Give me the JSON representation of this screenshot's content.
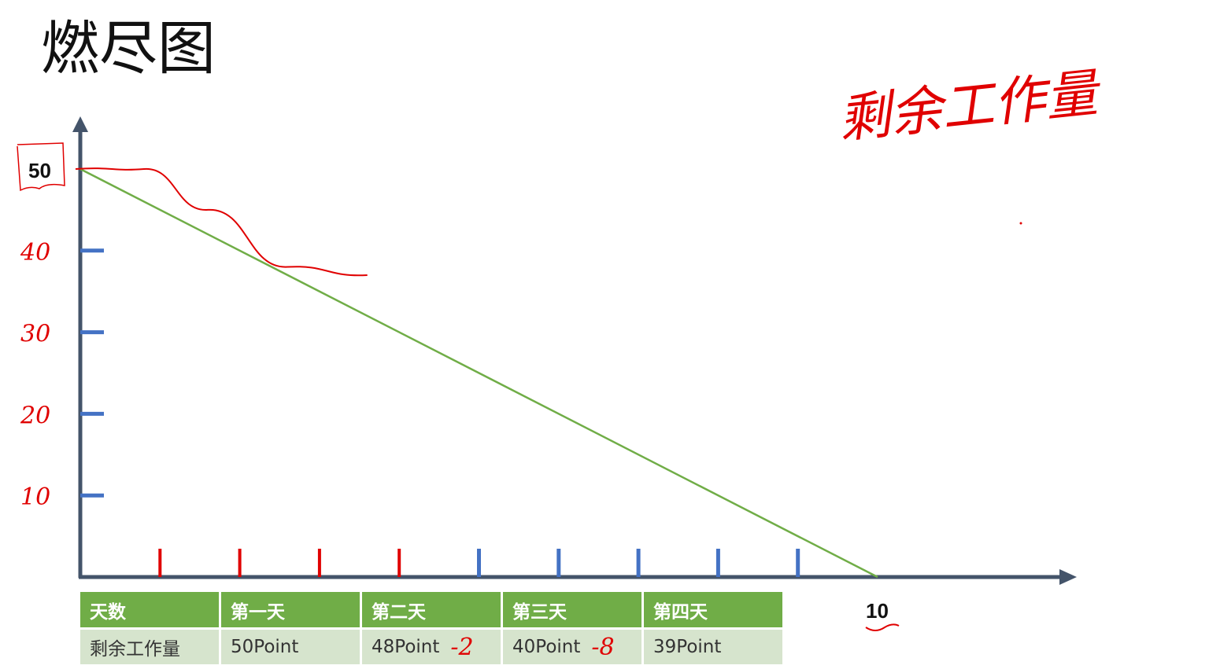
{
  "title": "燃尽图",
  "chart_data": {
    "type": "line",
    "x_axis_end_label": "10",
    "y_axis_top_label": "50",
    "xlim": [
      0,
      10
    ],
    "ylim": [
      0,
      50
    ],
    "ideal_line": {
      "x": [
        0,
        10
      ],
      "y": [
        50,
        0
      ]
    },
    "x_ticks": [
      1,
      2,
      3,
      4,
      5,
      6,
      7,
      8,
      9
    ],
    "y_ticks": [
      10,
      20,
      30,
      40
    ],
    "handwritten_y_labels": [
      "40",
      "30",
      "20",
      "10"
    ],
    "handwritten_actual_line": {
      "x": [
        0,
        0.8,
        1.6,
        2.6,
        3.6
      ],
      "y": [
        50,
        50,
        45,
        38,
        37
      ]
    },
    "handwritten_note": "剩余工作量",
    "colors": {
      "ideal": "#70ad47",
      "axis": "#44546a",
      "tick": "#4472c4",
      "ink": "#e00000"
    }
  },
  "table": {
    "headers": [
      "天数",
      "第一天",
      "第二天",
      "第三天",
      "第四天"
    ],
    "row_label": "剩余工作量",
    "values": [
      "50Point",
      "48Point",
      "40Point",
      "39Point"
    ],
    "handwritten_diffs": [
      "-2",
      "-8"
    ]
  }
}
